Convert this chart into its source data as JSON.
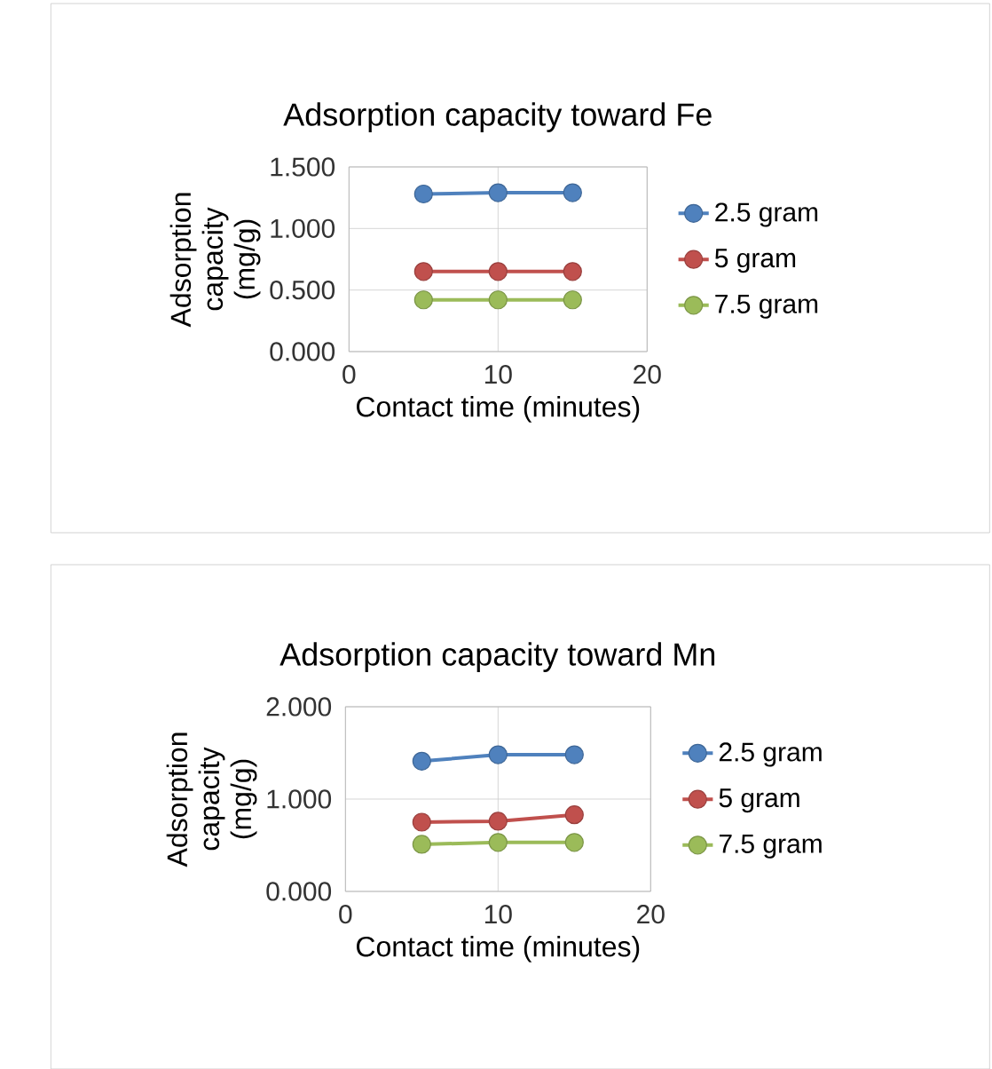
{
  "chart_data": [
    {
      "type": "line",
      "title": "Adsorption capacity toward Fe",
      "xlabel": "Contact time (minutes)",
      "ylabel": "Adsorption capacity (mg/g)",
      "xlim": [
        0,
        20
      ],
      "xticks": [
        0,
        10,
        20
      ],
      "ylim": [
        0,
        1.5
      ],
      "yticks": [
        {
          "value": 0,
          "label": "0.000"
        },
        {
          "value": 0.5,
          "label": "0.500"
        },
        {
          "value": 1,
          "label": "1.000"
        },
        {
          "value": 1.5,
          "label": "1.500"
        }
      ],
      "grid": true,
      "legend": "right",
      "marker": "circle",
      "x": [
        5,
        10,
        15
      ],
      "series": [
        {
          "name": "2.5 gram",
          "color": "#4f81bd",
          "values": [
            1.28,
            1.29,
            1.29
          ]
        },
        {
          "name": "5 gram",
          "color": "#c0504d",
          "values": [
            0.65,
            0.65,
            0.65
          ]
        },
        {
          "name": "7.5 gram",
          "color": "#9bbb59",
          "values": [
            0.42,
            0.42,
            0.42
          ]
        }
      ]
    },
    {
      "type": "line",
      "title": "Adsorption capacity toward Mn",
      "xlabel": "Contact time (minutes)",
      "ylabel": "Adsorption capacity (mg/g)",
      "xlim": [
        0,
        20
      ],
      "xticks": [
        0,
        10,
        20
      ],
      "ylim": [
        0,
        2
      ],
      "yticks": [
        {
          "value": 0,
          "label": "0.000"
        },
        {
          "value": 1,
          "label": "1.000"
        },
        {
          "value": 2,
          "label": "2.000"
        }
      ],
      "grid": true,
      "legend": "right",
      "marker": "circle",
      "x": [
        5,
        10,
        15
      ],
      "series": [
        {
          "name": "2.5 gram",
          "color": "#4f81bd",
          "values": [
            1.41,
            1.48,
            1.48
          ]
        },
        {
          "name": "5 gram",
          "color": "#c0504d",
          "values": [
            0.75,
            0.76,
            0.83
          ]
        },
        {
          "name": "7.5 gram",
          "color": "#9bbb59",
          "values": [
            0.51,
            0.53,
            0.53
          ]
        }
      ]
    }
  ]
}
